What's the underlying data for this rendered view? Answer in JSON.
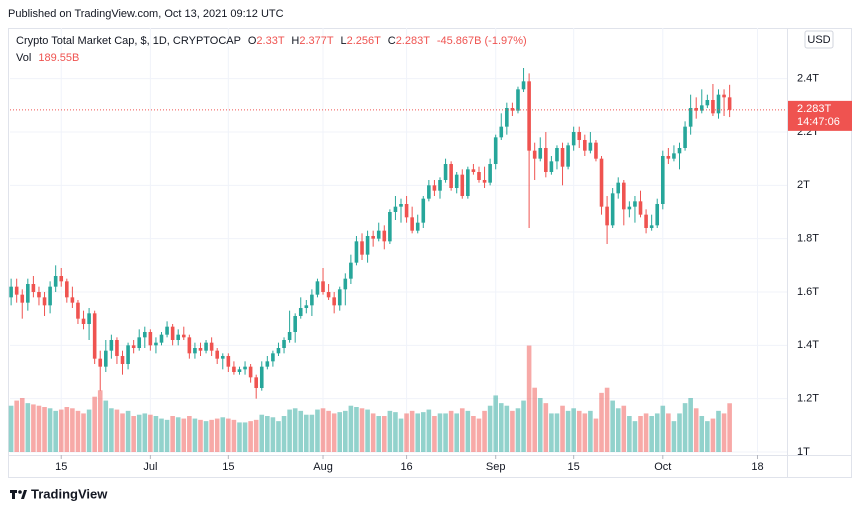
{
  "published": "Published on TradingView.com, Oct 13, 2021 09:12 UTC",
  "symbol": "Crypto Total Market Cap, $, 1D, CRYPTOCAP",
  "ohlc_keys": [
    "O",
    "H",
    "L",
    "C"
  ],
  "ohlc_labels": [
    "2.33T",
    "2.377T",
    "2.256T",
    "2.283T"
  ],
  "change": "-45.867B (-1.97%)",
  "vol_key": "Vol",
  "vol_label": "189.55B",
  "currency": "USD",
  "price_tag": "2.283T",
  "countdown": "14:47:06",
  "brand": "TradingView",
  "chart_data": {
    "type": "candlestick",
    "up_color": "#26a69a",
    "down_color": "#ef5350",
    "grid": true,
    "ylim": [
      1,
      2.59
    ],
    "yticks": [
      {
        "value": 1,
        "label": "1T"
      },
      {
        "value": 1.2,
        "label": "1.2T"
      },
      {
        "value": 1.4,
        "label": "1.4T"
      },
      {
        "value": 1.6,
        "label": "1.6T"
      },
      {
        "value": 1.8,
        "label": "1.8T"
      },
      {
        "value": 2,
        "label": "2T"
      },
      {
        "value": 2.2,
        "label": "2.2T"
      },
      {
        "value": 2.4,
        "label": "2.4T"
      }
    ],
    "xlim": [
      -0.2,
      139.3
    ],
    "xticks": [
      {
        "value": 9,
        "label": "15"
      },
      {
        "value": 25,
        "label": "Jul"
      },
      {
        "value": 39,
        "label": "15"
      },
      {
        "value": 56,
        "label": "Aug"
      },
      {
        "value": 71,
        "label": "16"
      },
      {
        "value": 87,
        "label": "Sep"
      },
      {
        "value": 101,
        "label": "15"
      },
      {
        "value": 117,
        "label": "Oct"
      },
      {
        "value": 134,
        "label": "18"
      }
    ],
    "volume_lim": [
      0,
      420
    ],
    "ohlc": [
      [
        1.58,
        1.65,
        1.55,
        1.62
      ],
      [
        1.62,
        1.65,
        1.56,
        1.59
      ],
      [
        1.59,
        1.61,
        1.5,
        1.56
      ],
      [
        1.56,
        1.65,
        1.53,
        1.63
      ],
      [
        1.63,
        1.66,
        1.58,
        1.6
      ],
      [
        1.6,
        1.62,
        1.55,
        1.58
      ],
      [
        1.58,
        1.6,
        1.51,
        1.55
      ],
      [
        1.55,
        1.64,
        1.52,
        1.62
      ],
      [
        1.62,
        1.7,
        1.6,
        1.66
      ],
      [
        1.66,
        1.69,
        1.62,
        1.64
      ],
      [
        1.64,
        1.65,
        1.56,
        1.58
      ],
      [
        1.58,
        1.62,
        1.54,
        1.56
      ],
      [
        1.56,
        1.57,
        1.48,
        1.5
      ],
      [
        1.5,
        1.53,
        1.46,
        1.48
      ],
      [
        1.48,
        1.54,
        1.42,
        1.52
      ],
      [
        1.52,
        1.53,
        1.33,
        1.35
      ],
      [
        1.35,
        1.38,
        1.23,
        1.32
      ],
      [
        1.32,
        1.42,
        1.3,
        1.38
      ],
      [
        1.38,
        1.44,
        1.35,
        1.42
      ],
      [
        1.42,
        1.43,
        1.33,
        1.36
      ],
      [
        1.36,
        1.38,
        1.29,
        1.33
      ],
      [
        1.33,
        1.41,
        1.31,
        1.4
      ],
      [
        1.4,
        1.42,
        1.37,
        1.39
      ],
      [
        1.39,
        1.46,
        1.38,
        1.43
      ],
      [
        1.43,
        1.47,
        1.39,
        1.45
      ],
      [
        1.45,
        1.46,
        1.38,
        1.4
      ],
      [
        1.4,
        1.43,
        1.37,
        1.41
      ],
      [
        1.41,
        1.45,
        1.4,
        1.44
      ],
      [
        1.44,
        1.49,
        1.43,
        1.47
      ],
      [
        1.47,
        1.48,
        1.4,
        1.42
      ],
      [
        1.42,
        1.46,
        1.4,
        1.44
      ],
      [
        1.44,
        1.47,
        1.42,
        1.43
      ],
      [
        1.43,
        1.44,
        1.35,
        1.37
      ],
      [
        1.37,
        1.41,
        1.35,
        1.39
      ],
      [
        1.39,
        1.41,
        1.36,
        1.38
      ],
      [
        1.38,
        1.42,
        1.37,
        1.41
      ],
      [
        1.41,
        1.43,
        1.36,
        1.38
      ],
      [
        1.38,
        1.39,
        1.33,
        1.35
      ],
      [
        1.35,
        1.37,
        1.31,
        1.36
      ],
      [
        1.36,
        1.37,
        1.3,
        1.32
      ],
      [
        1.32,
        1.34,
        1.29,
        1.3
      ],
      [
        1.3,
        1.32,
        1.29,
        1.31
      ],
      [
        1.31,
        1.34,
        1.29,
        1.32
      ],
      [
        1.32,
        1.33,
        1.26,
        1.28
      ],
      [
        1.28,
        1.29,
        1.2,
        1.24
      ],
      [
        1.24,
        1.34,
        1.23,
        1.32
      ],
      [
        1.32,
        1.36,
        1.31,
        1.34
      ],
      [
        1.34,
        1.38,
        1.32,
        1.37
      ],
      [
        1.37,
        1.41,
        1.36,
        1.39
      ],
      [
        1.39,
        1.43,
        1.37,
        1.42
      ],
      [
        1.42,
        1.53,
        1.41,
        1.45
      ],
      [
        1.45,
        1.52,
        1.41,
        1.51
      ],
      [
        1.51,
        1.58,
        1.5,
        1.54
      ],
      [
        1.54,
        1.57,
        1.52,
        1.55
      ],
      [
        1.55,
        1.61,
        1.51,
        1.59
      ],
      [
        1.59,
        1.65,
        1.58,
        1.64
      ],
      [
        1.64,
        1.69,
        1.59,
        1.6
      ],
      [
        1.6,
        1.63,
        1.57,
        1.58
      ],
      [
        1.58,
        1.6,
        1.52,
        1.55
      ],
      [
        1.55,
        1.62,
        1.53,
        1.61
      ],
      [
        1.61,
        1.67,
        1.55,
        1.65
      ],
      [
        1.65,
        1.74,
        1.63,
        1.71
      ],
      [
        1.71,
        1.81,
        1.7,
        1.79
      ],
      [
        1.79,
        1.82,
        1.72,
        1.74
      ],
      [
        1.74,
        1.83,
        1.71,
        1.81
      ],
      [
        1.81,
        1.83,
        1.77,
        1.8
      ],
      [
        1.8,
        1.86,
        1.79,
        1.83
      ],
      [
        1.83,
        1.85,
        1.76,
        1.79
      ],
      [
        1.79,
        1.91,
        1.78,
        1.9
      ],
      [
        1.9,
        1.96,
        1.87,
        1.92
      ],
      [
        1.92,
        1.95,
        1.86,
        1.93
      ],
      [
        1.93,
        1.96,
        1.86,
        1.88
      ],
      [
        1.88,
        1.92,
        1.82,
        1.83
      ],
      [
        1.83,
        1.89,
        1.82,
        1.86
      ],
      [
        1.86,
        1.96,
        1.84,
        1.95
      ],
      [
        1.95,
        2.02,
        1.94,
        2
      ],
      [
        2,
        2.02,
        1.96,
        1.98
      ],
      [
        1.98,
        2.03,
        1.95,
        2.02
      ],
      [
        2.02,
        2.1,
        2.01,
        2.08
      ],
      [
        2.08,
        2.09,
        1.98,
        1.99
      ],
      [
        1.99,
        2.05,
        1.97,
        2.04
      ],
      [
        2.04,
        2.06,
        1.95,
        1.96
      ],
      [
        1.96,
        2.07,
        1.95,
        2.06
      ],
      [
        2.06,
        2.08,
        2.04,
        2.05
      ],
      [
        2.05,
        2.07,
        2.01,
        2.02
      ],
      [
        2.02,
        2.07,
        1.99,
        2.01
      ],
      [
        2.01,
        2.1,
        2,
        2.08
      ],
      [
        2.08,
        2.19,
        2.06,
        2.18
      ],
      [
        2.18,
        2.27,
        2.17,
        2.22
      ],
      [
        2.22,
        2.31,
        2.19,
        2.29
      ],
      [
        2.29,
        2.31,
        2.26,
        2.28
      ],
      [
        2.28,
        2.37,
        2.27,
        2.36
      ],
      [
        2.36,
        2.44,
        2.35,
        2.39
      ],
      [
        2.39,
        2.42,
        1.84,
        2.13
      ],
      [
        2.13,
        2.16,
        2.02,
        2.1
      ],
      [
        2.1,
        2.18,
        2.09,
        2.14
      ],
      [
        2.14,
        2.2,
        2.03,
        2.05
      ],
      [
        2.05,
        2.11,
        2.04,
        2.09
      ],
      [
        2.09,
        2.15,
        2.06,
        2.14
      ],
      [
        2.14,
        2.16,
        2,
        2.07
      ],
      [
        2.07,
        2.16,
        2.06,
        2.15
      ],
      [
        2.15,
        2.22,
        2.13,
        2.2
      ],
      [
        2.2,
        2.22,
        2.14,
        2.17
      ],
      [
        2.17,
        2.19,
        2.11,
        2.13
      ],
      [
        2.13,
        2.2,
        2.12,
        2.16
      ],
      [
        2.16,
        2.17,
        2.09,
        2.1
      ],
      [
        2.1,
        2.11,
        1.89,
        1.92
      ],
      [
        1.92,
        1.96,
        1.78,
        1.85
      ],
      [
        1.85,
        1.99,
        1.84,
        1.97
      ],
      [
        1.97,
        2.03,
        1.95,
        2.01
      ],
      [
        2.01,
        2.02,
        1.85,
        1.91
      ],
      [
        1.91,
        1.94,
        1.88,
        1.92
      ],
      [
        1.92,
        1.96,
        1.86,
        1.94
      ],
      [
        1.94,
        1.98,
        1.88,
        1.89
      ],
      [
        1.89,
        1.91,
        1.82,
        1.84
      ],
      [
        1.84,
        1.89,
        1.83,
        1.85
      ],
      [
        1.85,
        1.95,
        1.84,
        1.93
      ],
      [
        1.93,
        2.13,
        1.91,
        2.11
      ],
      [
        2.11,
        2.14,
        2.08,
        2.1
      ],
      [
        2.1,
        2.15,
        2.09,
        2.12
      ],
      [
        2.12,
        2.16,
        2.06,
        2.14
      ],
      [
        2.14,
        2.24,
        2.13,
        2.22
      ],
      [
        2.22,
        2.34,
        2.19,
        2.29
      ],
      [
        2.29,
        2.33,
        2.25,
        2.28
      ],
      [
        2.28,
        2.36,
        2.27,
        2.3
      ],
      [
        2.3,
        2.34,
        2.29,
        2.32
      ],
      [
        2.32,
        2.38,
        2.26,
        2.27
      ],
      [
        2.27,
        2.36,
        2.25,
        2.34
      ],
      [
        2.34,
        2.36,
        2.26,
        2.33
      ],
      [
        2.33,
        2.377,
        2.256,
        2.283
      ]
    ],
    "volume": [
      180,
      200,
      210,
      190,
      185,
      180,
      175,
      170,
      160,
      165,
      175,
      170,
      160,
      150,
      165,
      215,
      240,
      200,
      170,
      165,
      150,
      160,
      140,
      145,
      150,
      145,
      140,
      130,
      125,
      140,
      135,
      130,
      140,
      130,
      125,
      120,
      125,
      130,
      135,
      130,
      125,
      115,
      115,
      120,
      125,
      145,
      140,
      135,
      120,
      140,
      165,
      170,
      160,
      145,
      145,
      165,
      170,
      160,
      150,
      155,
      160,
      180,
      175,
      170,
      165,
      150,
      140,
      140,
      160,
      155,
      130,
      150,
      160,
      150,
      155,
      165,
      140,
      150,
      150,
      160,
      150,
      170,
      160,
      140,
      130,
      160,
      180,
      220,
      190,
      180,
      160,
      170,
      200,
      414,
      250,
      210,
      190,
      150,
      150,
      180,
      160,
      170,
      160,
      150,
      160,
      130,
      230,
      250,
      200,
      170,
      180,
      140,
      120,
      140,
      150,
      140,
      150,
      180,
      150,
      120,
      150,
      190,
      210,
      170,
      140,
      120,
      130,
      160,
      150,
      189.55
    ]
  }
}
